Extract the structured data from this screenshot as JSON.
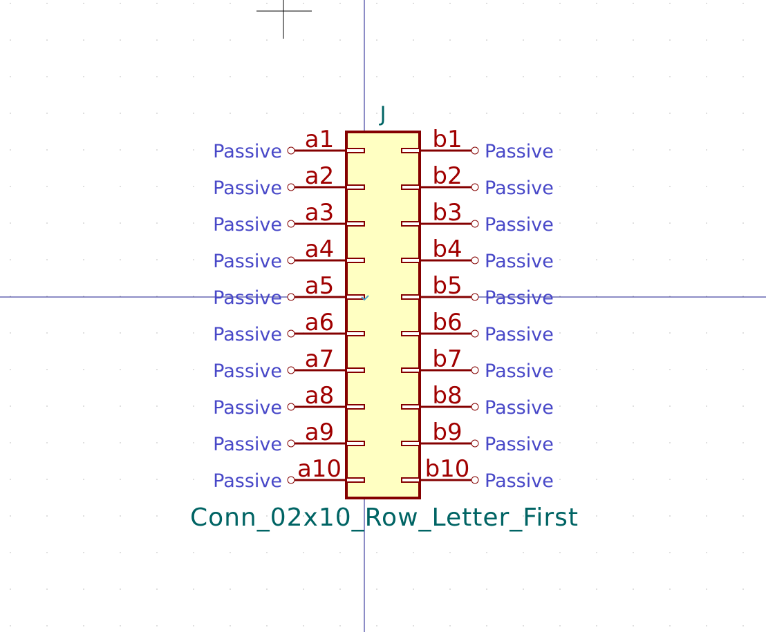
{
  "component": {
    "reference": "J",
    "value": "Conn_02x10_Row_Letter_First"
  },
  "pins": {
    "left": [
      {
        "number": "a1",
        "type": "Passive"
      },
      {
        "number": "a2",
        "type": "Passive"
      },
      {
        "number": "a3",
        "type": "Passive"
      },
      {
        "number": "a4",
        "type": "Passive"
      },
      {
        "number": "a5",
        "type": "Passive"
      },
      {
        "number": "a6",
        "type": "Passive"
      },
      {
        "number": "a7",
        "type": "Passive"
      },
      {
        "number": "a8",
        "type": "Passive"
      },
      {
        "number": "a9",
        "type": "Passive"
      },
      {
        "number": "a10",
        "type": "Passive"
      }
    ],
    "right": [
      {
        "number": "b1",
        "type": "Passive"
      },
      {
        "number": "b2",
        "type": "Passive"
      },
      {
        "number": "b3",
        "type": "Passive"
      },
      {
        "number": "b4",
        "type": "Passive"
      },
      {
        "number": "b5",
        "type": "Passive"
      },
      {
        "number": "b6",
        "type": "Passive"
      },
      {
        "number": "b7",
        "type": "Passive"
      },
      {
        "number": "b8",
        "type": "Passive"
      },
      {
        "number": "b9",
        "type": "Passive"
      },
      {
        "number": "b10",
        "type": "Passive"
      }
    ]
  },
  "colors": {
    "background": "#ffffff",
    "grid_dot": "#c8c8c8",
    "axis": "#1a1a8c",
    "cursor": "#000000",
    "body_fill": "#ffffc2",
    "body_stroke": "#840000",
    "pin_line": "#840000",
    "pin_number": "#a00000",
    "pin_type": "#4848c8",
    "field_text": "#006464",
    "anchor": "#4aa0c8"
  }
}
